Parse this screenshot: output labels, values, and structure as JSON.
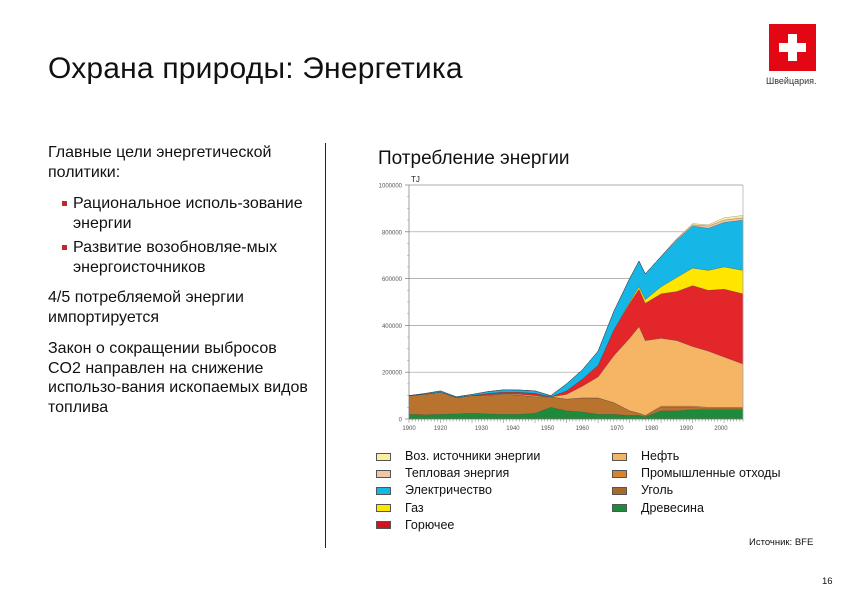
{
  "header": {
    "title": "Охрана природы: Энергетика",
    "logo_text": "Швейцария."
  },
  "left_panel": {
    "goals_heading": "Главные цели энергетической политики:",
    "bullets": [
      "Рациональное исполь-зование энергии",
      "Развитие возобновляе-мых энергоисточников"
    ],
    "import_text": "4/5 потребляемой энергии импортируется",
    "co2_text": "Закон о сокращении выбросов CO2 направлен на снижение использо-вания ископаемых видов топлива"
  },
  "chart_title": "Потребление энергии",
  "source": "Источник: BFE",
  "page_number": "16",
  "chart_data": {
    "type": "area",
    "stacked": true,
    "title": "Потребление энергии",
    "xlabel": "",
    "ylabel": "TJ",
    "ylim": [
      0,
      1000000
    ],
    "xlim": [
      1900,
      2006
    ],
    "yticks": [
      0,
      200000,
      400000,
      600000,
      800000,
      1000000
    ],
    "ytick_labels": [
      "0",
      "200000",
      "400000",
      "600000",
      "800000",
      "1000000"
    ],
    "xtick_labels": [
      "1900",
      "1920",
      "1930",
      "1940",
      "1950",
      "1960",
      "1970",
      "1980",
      "1990",
      "2000"
    ],
    "grid": "horizontal",
    "legend_position": "bottom",
    "x": [
      1900,
      1905,
      1910,
      1915,
      1920,
      1925,
      1930,
      1935,
      1940,
      1945,
      1950,
      1955,
      1960,
      1965,
      1970,
      1973,
      1975,
      1980,
      1985,
      1990,
      1995,
      2000,
      2006
    ],
    "series": [
      {
        "name": "Древесина",
        "color": "#1e8a3c",
        "values": [
          20000,
          18000,
          20000,
          22000,
          25000,
          22000,
          20000,
          20000,
          25000,
          50000,
          35000,
          30000,
          20000,
          20000,
          15000,
          15000,
          10000,
          35000,
          35000,
          40000,
          40000,
          40000,
          40000
        ]
      },
      {
        "name": "Уголь",
        "color": "#b8732e",
        "values": [
          80000,
          88000,
          95000,
          70000,
          75000,
          80000,
          85000,
          82000,
          70000,
          45000,
          50000,
          60000,
          70000,
          50000,
          20000,
          10000,
          5000,
          15000,
          15000,
          10000,
          5000,
          5000,
          5000
        ]
      },
      {
        "name": "Промышленные отходы",
        "color": "#d8822a",
        "values": [
          0,
          0,
          0,
          0,
          0,
          0,
          0,
          0,
          0,
          0,
          0,
          0,
          0,
          0,
          0,
          0,
          0,
          5000,
          5000,
          5000,
          5000,
          5000,
          5000
        ]
      },
      {
        "name": "Нефть",
        "color": "#f6b565",
        "values": [
          0,
          0,
          0,
          0,
          0,
          2000,
          3000,
          4000,
          5000,
          0,
          20000,
          50000,
          90000,
          200000,
          310000,
          370000,
          320000,
          290000,
          280000,
          255000,
          240000,
          215000,
          185000
        ]
      },
      {
        "name": "Горючее",
        "color": "#e3262a",
        "values": [
          0,
          0,
          0,
          0,
          0,
          5000,
          7000,
          8000,
          10000,
          0,
          15000,
          30000,
          50000,
          110000,
          150000,
          160000,
          160000,
          190000,
          210000,
          260000,
          260000,
          290000,
          300000
        ]
      },
      {
        "name": "Газ",
        "color": "#ffe600",
        "values": [
          0,
          0,
          0,
          0,
          0,
          0,
          0,
          0,
          0,
          0,
          0,
          0,
          0,
          0,
          5000,
          10000,
          15000,
          30000,
          60000,
          75000,
          85000,
          95000,
          100000
        ]
      },
      {
        "name": "Электричество",
        "color": "#16b7e6",
        "values": [
          0,
          3000,
          5000,
          3000,
          5000,
          8000,
          10000,
          10000,
          10000,
          5000,
          30000,
          40000,
          60000,
          80000,
          100000,
          110000,
          110000,
          130000,
          160000,
          180000,
          180000,
          190000,
          215000
        ]
      },
      {
        "name": "Тепловая энергия",
        "color": "#f2c4aa",
        "values": [
          0,
          0,
          0,
          0,
          0,
          0,
          0,
          0,
          0,
          0,
          0,
          0,
          0,
          0,
          0,
          0,
          0,
          0,
          5000,
          5000,
          10000,
          10000,
          10000
        ]
      },
      {
        "name": "Воз. источники энергии",
        "color": "#fbeea0",
        "values": [
          0,
          0,
          0,
          0,
          0,
          0,
          0,
          0,
          0,
          0,
          0,
          0,
          0,
          0,
          0,
          0,
          0,
          0,
          0,
          5000,
          5000,
          10000,
          10000
        ]
      }
    ],
    "legend": {
      "left": [
        {
          "label": "Воз. источники энергии",
          "color": "#fbeea0"
        },
        {
          "label": "Тепловая энергия",
          "color": "#f2c4aa"
        },
        {
          "label": "Электричество",
          "color": "#16b7e6"
        },
        {
          "label": "Газ",
          "color": "#ffe600"
        },
        {
          "label": "Горючее",
          "color": "#d2121e"
        }
      ],
      "right": [
        {
          "label": "Нефть",
          "color": "#f6b565"
        },
        {
          "label": "Промышленные отходы",
          "color": "#d8822a"
        },
        {
          "label": "Уголь",
          "color": "#a8692b"
        },
        {
          "label": "Древесина",
          "color": "#1e8a3c"
        }
      ]
    }
  }
}
